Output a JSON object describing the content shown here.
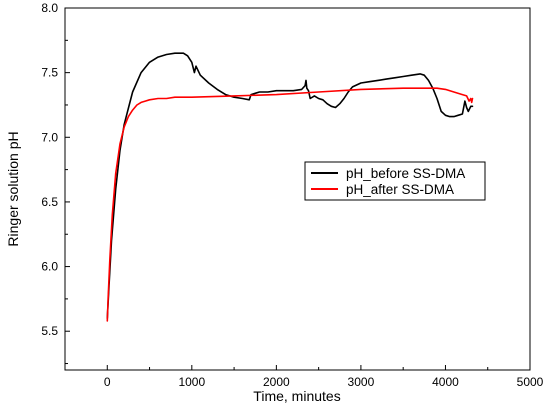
{
  "chart_data": {
    "type": "line",
    "title": "",
    "xlabel": "Time, minutes",
    "ylabel": "Ringer solution pH",
    "xlim": [
      -500,
      5000
    ],
    "ylim": [
      5.2,
      8.0
    ],
    "xticks": [
      0,
      1000,
      2000,
      3000,
      4000,
      5000
    ],
    "yticks": [
      5.5,
      6.0,
      6.5,
      7.0,
      7.5,
      8.0
    ],
    "xtick_labels": [
      "0",
      "1000",
      "2000",
      "3000",
      "4000",
      "5000"
    ],
    "ytick_labels": [
      "5.5",
      "6.0",
      "6.5",
      "7.0",
      "7.5",
      "8.0"
    ],
    "grid": false,
    "legend_position": "center-right",
    "series": [
      {
        "name": "pH_before SS-DMA",
        "color": "#000000",
        "x": [
          0,
          20,
          50,
          100,
          150,
          200,
          300,
          400,
          500,
          600,
          700,
          800,
          900,
          950,
          1000,
          1030,
          1050,
          1100,
          1200,
          1300,
          1400,
          1500,
          1600,
          1680,
          1700,
          1750,
          1800,
          1900,
          2000,
          2100,
          2200,
          2300,
          2340,
          2350,
          2360,
          2380,
          2400,
          2450,
          2500,
          2550,
          2600,
          2650,
          2700,
          2750,
          2800,
          2850,
          2900,
          3000,
          3100,
          3200,
          3300,
          3400,
          3500,
          3600,
          3700,
          3750,
          3800,
          3850,
          3900,
          3950,
          4000,
          4050,
          4100,
          4150,
          4200,
          4230,
          4250,
          4270,
          4300,
          4320
        ],
        "y": [
          5.6,
          5.85,
          6.2,
          6.6,
          6.9,
          7.1,
          7.35,
          7.5,
          7.58,
          7.62,
          7.64,
          7.65,
          7.65,
          7.63,
          7.58,
          7.5,
          7.55,
          7.48,
          7.42,
          7.37,
          7.33,
          7.31,
          7.3,
          7.29,
          7.33,
          7.34,
          7.35,
          7.35,
          7.36,
          7.36,
          7.36,
          7.37,
          7.4,
          7.44,
          7.38,
          7.36,
          7.3,
          7.32,
          7.3,
          7.29,
          7.26,
          7.24,
          7.23,
          7.26,
          7.3,
          7.35,
          7.39,
          7.42,
          7.43,
          7.44,
          7.45,
          7.46,
          7.47,
          7.48,
          7.49,
          7.48,
          7.44,
          7.38,
          7.3,
          7.2,
          7.17,
          7.16,
          7.16,
          7.17,
          7.18,
          7.28,
          7.23,
          7.2,
          7.24,
          7.24
        ]
      },
      {
        "name": "pH_after SS-DMA",
        "color": "#ff0000",
        "x": [
          0,
          10,
          30,
          60,
          100,
          150,
          200,
          250,
          300,
          350,
          400,
          450,
          500,
          600,
          700,
          800,
          1000,
          1500,
          2000,
          2500,
          3000,
          3500,
          3800,
          3900,
          4000,
          4100,
          4200,
          4250,
          4280,
          4300,
          4310,
          4320
        ],
        "y": [
          5.58,
          5.75,
          6.05,
          6.4,
          6.72,
          6.95,
          7.08,
          7.16,
          7.21,
          7.25,
          7.27,
          7.28,
          7.29,
          7.3,
          7.3,
          7.31,
          7.31,
          7.32,
          7.33,
          7.35,
          7.37,
          7.38,
          7.38,
          7.38,
          7.37,
          7.35,
          7.33,
          7.32,
          7.28,
          7.3,
          7.27,
          7.3
        ]
      }
    ]
  }
}
